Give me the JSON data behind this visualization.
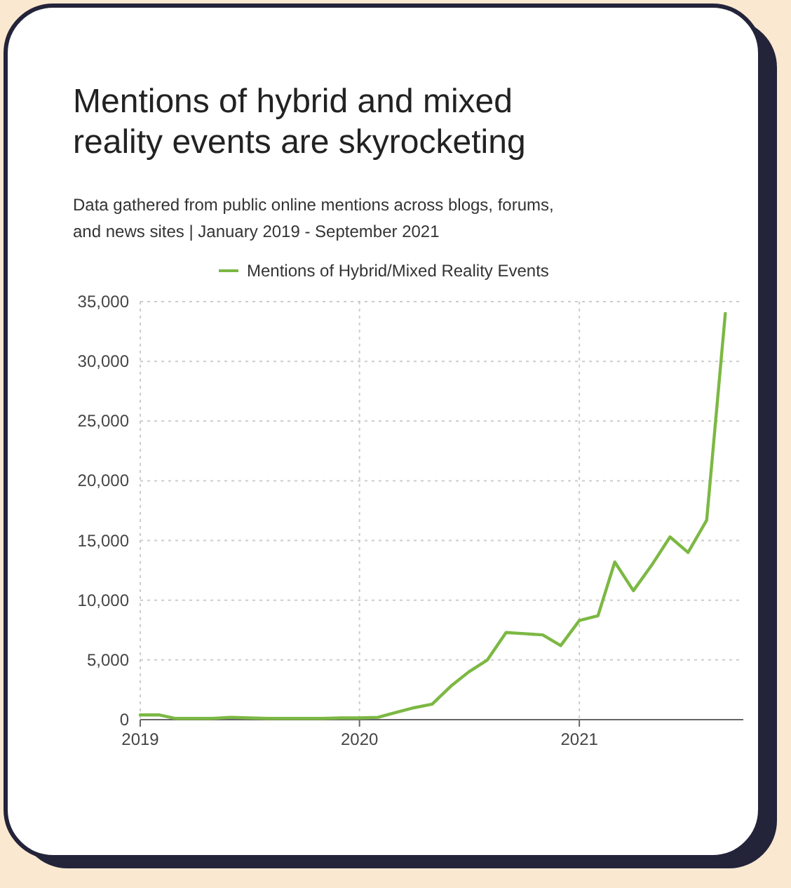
{
  "chart_data": {
    "type": "line",
    "title": "Mentions of hybrid and mixed reality events are skyrocketing",
    "subtitle": "Data gathered from public online mentions across blogs, forums, and news sites | January 2019 - September 2021",
    "x": [
      "2019-01",
      "2019-02",
      "2019-03",
      "2019-04",
      "2019-05",
      "2019-06",
      "2019-07",
      "2019-08",
      "2019-09",
      "2019-10",
      "2019-11",
      "2019-12",
      "2020-01",
      "2020-02",
      "2020-03",
      "2020-04",
      "2020-05",
      "2020-06",
      "2020-07",
      "2020-08",
      "2020-09",
      "2020-10",
      "2020-11",
      "2020-12",
      "2021-01",
      "2021-02",
      "2021-03",
      "2021-04",
      "2021-05",
      "2021-06",
      "2021-07",
      "2021-08",
      "2021-09"
    ],
    "series": [
      {
        "name": "Mentions of Hybrid/Mixed Reality Events",
        "color": "#7cb843",
        "values": [
          400,
          400,
          100,
          100,
          100,
          200,
          150,
          100,
          100,
          100,
          100,
          150,
          150,
          200,
          600,
          1000,
          1300,
          2800,
          4000,
          5000,
          7300,
          7200,
          7100,
          6200,
          8300,
          8700,
          13200,
          10800,
          12900,
          15300,
          14000,
          16700,
          34000
        ]
      }
    ],
    "xlim": [
      "2019-01",
      "2021-10"
    ],
    "xticks": [
      {
        "value": "2019-01",
        "label": "2019"
      },
      {
        "value": "2020-01",
        "label": "2020"
      },
      {
        "value": "2021-01",
        "label": "2021"
      }
    ],
    "ylim": [
      0,
      35000
    ],
    "yticks": [
      {
        "value": 0,
        "label": "0"
      },
      {
        "value": 5000,
        "label": "5,000"
      },
      {
        "value": 10000,
        "label": "10,000"
      },
      {
        "value": 15000,
        "label": "15,000"
      },
      {
        "value": 20000,
        "label": "20,000"
      },
      {
        "value": 25000,
        "label": "25,000"
      },
      {
        "value": 30000,
        "label": "30,000"
      },
      {
        "value": 35000,
        "label": "35,000"
      }
    ],
    "grid": true,
    "legend": "top",
    "marker": "none",
    "line_style": "solid"
  }
}
